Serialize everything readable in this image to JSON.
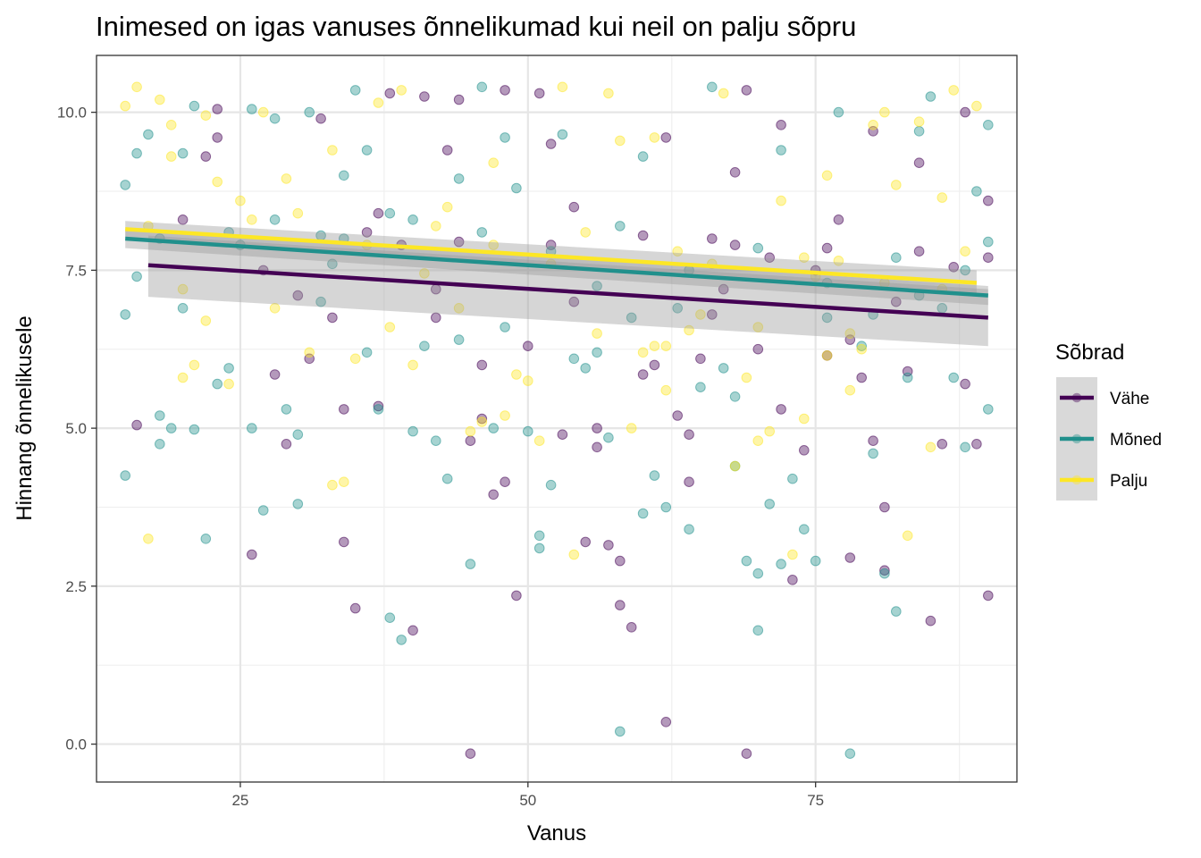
{
  "chart_data": {
    "type": "scatter",
    "title": "Inimesed on igas vanuses õnnelikumad kui neil on palju sõpru",
    "xlabel": "Vanus",
    "ylabel": "Hinnang õnnelikusele",
    "xlim": [
      12.5,
      92.5
    ],
    "ylim": [
      -0.6,
      10.9
    ],
    "x_ticks": [
      "25",
      "50",
      "75"
    ],
    "y_ticks": [
      "0.0",
      "2.5",
      "5.0",
      "7.5",
      "10.0"
    ],
    "x_tick_values": [
      25,
      50,
      75
    ],
    "y_tick_values": [
      0,
      2.5,
      5,
      7.5,
      10
    ],
    "grid": true,
    "legend": {
      "title": "Sõbrad",
      "position": "right",
      "entries": [
        "Vähe",
        "Mõned",
        "Palju"
      ]
    },
    "colors": {
      "Vähe": "#440154",
      "Mõned": "#21908C",
      "Palju": "#FDE725"
    },
    "point_opacity": 0.4,
    "series": [
      {
        "name": "Vähe",
        "color": "#440154",
        "trend": {
          "x": [
            17,
            90
          ],
          "y": [
            7.58,
            6.75
          ]
        },
        "band": {
          "x": [
            17,
            90
          ],
          "lower": [
            7.08,
            6.3
          ],
          "upper": [
            8.05,
            7.2
          ]
        },
        "points": [
          [
            16,
            5.05
          ],
          [
            22,
            9.3
          ],
          [
            23,
            10.05
          ],
          [
            23,
            9.6
          ],
          [
            26,
            3.0
          ],
          [
            28,
            5.85
          ],
          [
            29,
            4.75
          ],
          [
            31,
            6.1
          ],
          [
            32,
            9.9
          ],
          [
            33,
            6.75
          ],
          [
            34,
            3.2
          ],
          [
            35,
            2.15
          ],
          [
            37,
            8.4
          ],
          [
            37,
            5.35
          ],
          [
            38,
            10.3
          ],
          [
            39,
            7.9
          ],
          [
            40,
            1.8
          ],
          [
            41,
            10.25
          ],
          [
            42,
            6.75
          ],
          [
            43,
            9.4
          ],
          [
            44,
            10.2
          ],
          [
            45,
            4.8
          ],
          [
            45,
            -0.15
          ],
          [
            46,
            6.0
          ],
          [
            47,
            3.95
          ],
          [
            48,
            4.15
          ],
          [
            48,
            10.35
          ],
          [
            49,
            2.35
          ],
          [
            50,
            6.3
          ],
          [
            51,
            10.3
          ],
          [
            52,
            9.5
          ],
          [
            53,
            4.9
          ],
          [
            54,
            8.5
          ],
          [
            55,
            3.2
          ],
          [
            56,
            5.0
          ],
          [
            57,
            3.15
          ],
          [
            58,
            2.2
          ],
          [
            58,
            2.9
          ],
          [
            59,
            1.85
          ],
          [
            60,
            5.85
          ],
          [
            61,
            6.0
          ],
          [
            62,
            0.35
          ],
          [
            62,
            9.6
          ],
          [
            63,
            5.2
          ],
          [
            64,
            4.15
          ],
          [
            65,
            6.1
          ],
          [
            66,
            8.0
          ],
          [
            67,
            7.2
          ],
          [
            68,
            9.05
          ],
          [
            69,
            10.35
          ],
          [
            69,
            -0.15
          ],
          [
            70,
            6.25
          ],
          [
            71,
            7.7
          ],
          [
            72,
            9.8
          ],
          [
            73,
            2.6
          ],
          [
            74,
            4.65
          ],
          [
            75,
            7.5
          ],
          [
            76,
            6.15
          ],
          [
            77,
            8.3
          ],
          [
            78,
            2.95
          ],
          [
            79,
            5.8
          ],
          [
            80,
            9.7
          ],
          [
            81,
            3.75
          ],
          [
            81,
            2.75
          ],
          [
            82,
            7.0
          ],
          [
            83,
            5.9
          ],
          [
            84,
            9.2
          ],
          [
            85,
            1.95
          ],
          [
            86,
            4.75
          ],
          [
            87,
            7.55
          ],
          [
            88,
            10.0
          ],
          [
            89,
            4.75
          ],
          [
            90,
            2.35
          ],
          [
            90,
            7.7
          ],
          [
            90,
            8.6
          ],
          [
            20,
            8.3
          ],
          [
            27,
            7.5
          ],
          [
            36,
            8.1
          ],
          [
            44,
            7.95
          ],
          [
            52,
            7.9
          ],
          [
            60,
            8.05
          ],
          [
            68,
            7.9
          ],
          [
            76,
            7.85
          ],
          [
            84,
            7.8
          ],
          [
            30,
            7.1
          ],
          [
            42,
            7.2
          ],
          [
            54,
            7.0
          ],
          [
            66,
            6.8
          ],
          [
            78,
            6.4
          ],
          [
            34,
            5.3
          ],
          [
            46,
            5.15
          ],
          [
            56,
            4.7
          ],
          [
            64,
            4.9
          ],
          [
            72,
            5.3
          ],
          [
            80,
            4.8
          ],
          [
            88,
            5.7
          ]
        ]
      },
      {
        "name": "Mõned",
        "color": "#21908C",
        "trend": {
          "x": [
            15,
            90
          ],
          "y": [
            8.0,
            7.1
          ]
        },
        "band": {
          "x": [
            15,
            90
          ],
          "lower": [
            7.85,
            6.95
          ],
          "upper": [
            8.15,
            7.25
          ]
        },
        "points": [
          [
            15,
            4.25
          ],
          [
            15,
            6.8
          ],
          [
            15,
            8.85
          ],
          [
            16,
            7.4
          ],
          [
            16,
            9.35
          ],
          [
            17,
            9.65
          ],
          [
            18,
            5.2
          ],
          [
            18,
            4.75
          ],
          [
            19,
            5.0
          ],
          [
            20,
            9.35
          ],
          [
            21,
            10.1
          ],
          [
            21,
            4.98
          ],
          [
            22,
            3.25
          ],
          [
            23,
            5.7
          ],
          [
            24,
            5.95
          ],
          [
            25,
            7.9
          ],
          [
            26,
            5.0
          ],
          [
            26,
            10.05
          ],
          [
            27,
            3.7
          ],
          [
            28,
            9.9
          ],
          [
            29,
            5.3
          ],
          [
            30,
            3.8
          ],
          [
            30,
            4.9
          ],
          [
            31,
            10.0
          ],
          [
            32,
            8.05
          ],
          [
            33,
            7.6
          ],
          [
            34,
            9.0
          ],
          [
            35,
            10.35
          ],
          [
            36,
            6.2
          ],
          [
            37,
            5.3
          ],
          [
            38,
            2.0
          ],
          [
            38,
            8.4
          ],
          [
            39,
            1.65
          ],
          [
            40,
            4.95
          ],
          [
            41,
            6.3
          ],
          [
            42,
            4.8
          ],
          [
            43,
            4.2
          ],
          [
            44,
            8.95
          ],
          [
            45,
            2.85
          ],
          [
            46,
            10.4
          ],
          [
            47,
            5.0
          ],
          [
            48,
            6.6
          ],
          [
            49,
            8.8
          ],
          [
            50,
            4.95
          ],
          [
            51,
            3.3
          ],
          [
            51,
            3.1
          ],
          [
            52,
            4.1
          ],
          [
            53,
            9.65
          ],
          [
            54,
            6.1
          ],
          [
            55,
            5.95
          ],
          [
            56,
            7.25
          ],
          [
            57,
            4.85
          ],
          [
            58,
            0.2
          ],
          [
            59,
            6.75
          ],
          [
            60,
            3.65
          ],
          [
            61,
            4.25
          ],
          [
            62,
            3.75
          ],
          [
            63,
            6.9
          ],
          [
            64,
            3.4
          ],
          [
            65,
            5.65
          ],
          [
            66,
            10.4
          ],
          [
            67,
            5.95
          ],
          [
            68,
            4.4
          ],
          [
            69,
            2.9
          ],
          [
            70,
            1.8
          ],
          [
            70,
            2.7
          ],
          [
            71,
            3.8
          ],
          [
            72,
            2.85
          ],
          [
            73,
            4.2
          ],
          [
            74,
            3.4
          ],
          [
            75,
            2.9
          ],
          [
            76,
            6.75
          ],
          [
            77,
            10.0
          ],
          [
            78,
            -0.15
          ],
          [
            79,
            6.3
          ],
          [
            80,
            4.6
          ],
          [
            81,
            2.7
          ],
          [
            82,
            2.1
          ],
          [
            83,
            5.8
          ],
          [
            84,
            7.1
          ],
          [
            85,
            10.25
          ],
          [
            86,
            6.9
          ],
          [
            87,
            5.8
          ],
          [
            88,
            4.7
          ],
          [
            89,
            8.75
          ],
          [
            90,
            9.8
          ],
          [
            90,
            5.3
          ],
          [
            90,
            7.95
          ],
          [
            18,
            8.0
          ],
          [
            24,
            8.1
          ],
          [
            28,
            8.3
          ],
          [
            34,
            8.0
          ],
          [
            40,
            8.3
          ],
          [
            46,
            8.1
          ],
          [
            52,
            7.8
          ],
          [
            58,
            8.2
          ],
          [
            64,
            7.5
          ],
          [
            70,
            7.85
          ],
          [
            76,
            7.3
          ],
          [
            82,
            7.7
          ],
          [
            88,
            7.5
          ],
          [
            20,
            6.9
          ],
          [
            32,
            7.0
          ],
          [
            44,
            6.4
          ],
          [
            56,
            6.2
          ],
          [
            68,
            5.5
          ],
          [
            80,
            6.8
          ],
          [
            36,
            9.4
          ],
          [
            48,
            9.6
          ],
          [
            60,
            9.3
          ],
          [
            72,
            9.4
          ],
          [
            84,
            9.7
          ]
        ]
      },
      {
        "name": "Palju",
        "color": "#FDE725",
        "trend": {
          "x": [
            15,
            89
          ],
          "y": [
            8.15,
            7.3
          ]
        },
        "band": {
          "x": [
            15,
            89
          ],
          "lower": [
            8.02,
            7.1
          ],
          "upper": [
            8.28,
            7.5
          ]
        },
        "points": [
          [
            15,
            10.1
          ],
          [
            16,
            10.4
          ],
          [
            17,
            3.25
          ],
          [
            18,
            10.2
          ],
          [
            19,
            9.8
          ],
          [
            20,
            5.8
          ],
          [
            21,
            6.0
          ],
          [
            22,
            9.95
          ],
          [
            23,
            8.9
          ],
          [
            24,
            5.7
          ],
          [
            25,
            8.6
          ],
          [
            27,
            10.0
          ],
          [
            29,
            8.95
          ],
          [
            31,
            6.2
          ],
          [
            33,
            4.1
          ],
          [
            34,
            4.15
          ],
          [
            35,
            6.1
          ],
          [
            37,
            10.15
          ],
          [
            39,
            10.35
          ],
          [
            40,
            6.0
          ],
          [
            41,
            7.45
          ],
          [
            43,
            8.5
          ],
          [
            45,
            4.95
          ],
          [
            46,
            5.1
          ],
          [
            48,
            5.2
          ],
          [
            49,
            5.85
          ],
          [
            50,
            5.75
          ],
          [
            51,
            4.8
          ],
          [
            53,
            10.4
          ],
          [
            54,
            3.0
          ],
          [
            56,
            6.5
          ],
          [
            57,
            10.3
          ],
          [
            58,
            9.55
          ],
          [
            59,
            5.0
          ],
          [
            60,
            6.2
          ],
          [
            61,
            6.3
          ],
          [
            62,
            5.6
          ],
          [
            64,
            6.55
          ],
          [
            65,
            6.8
          ],
          [
            67,
            10.3
          ],
          [
            68,
            4.4
          ],
          [
            69,
            5.8
          ],
          [
            70,
            4.8
          ],
          [
            71,
            4.95
          ],
          [
            72,
            8.6
          ],
          [
            73,
            3.0
          ],
          [
            74,
            5.15
          ],
          [
            75,
            7.4
          ],
          [
            76,
            6.15
          ],
          [
            77,
            7.65
          ],
          [
            78,
            5.6
          ],
          [
            79,
            6.25
          ],
          [
            80,
            9.8
          ],
          [
            81,
            10.0
          ],
          [
            82,
            8.85
          ],
          [
            83,
            3.3
          ],
          [
            84,
            9.85
          ],
          [
            85,
            4.7
          ],
          [
            86,
            8.65
          ],
          [
            87,
            10.35
          ],
          [
            88,
            7.8
          ],
          [
            89,
            10.1
          ],
          [
            17,
            8.2
          ],
          [
            20,
            7.2
          ],
          [
            26,
            8.3
          ],
          [
            30,
            8.4
          ],
          [
            36,
            7.9
          ],
          [
            42,
            8.2
          ],
          [
            47,
            7.9
          ],
          [
            52,
            7.6
          ],
          [
            55,
            8.1
          ],
          [
            63,
            7.8
          ],
          [
            66,
            7.6
          ],
          [
            74,
            7.7
          ],
          [
            81,
            7.3
          ],
          [
            86,
            7.2
          ],
          [
            22,
            6.7
          ],
          [
            28,
            6.9
          ],
          [
            38,
            6.6
          ],
          [
            44,
            6.9
          ],
          [
            62,
            6.3
          ],
          [
            70,
            6.6
          ],
          [
            78,
            6.5
          ],
          [
            19,
            9.3
          ],
          [
            33,
            9.4
          ],
          [
            47,
            9.2
          ],
          [
            61,
            9.6
          ],
          [
            76,
            9.0
          ]
        ]
      }
    ]
  }
}
